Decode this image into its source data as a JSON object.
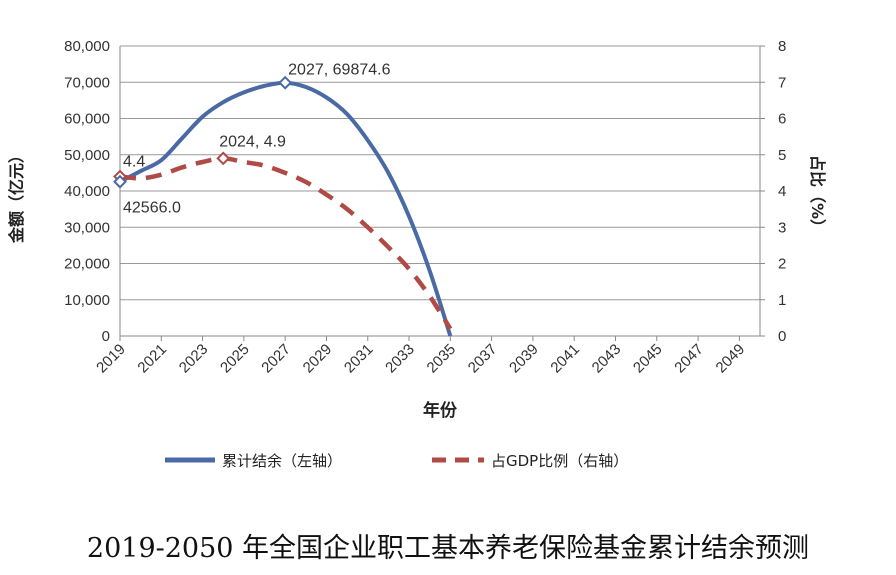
{
  "chart_data": {
    "type": "line",
    "title": "",
    "caption": "2019-2050 年全国企业职工基本养老保险基金累计结余预测",
    "xlabel": "年份",
    "ylabel_left": "金额（亿元）",
    "ylabel_right": "占比（%）",
    "x_ticks": [
      "2019",
      "2021",
      "2023",
      "2025",
      "2027",
      "2029",
      "2031",
      "2033",
      "2035",
      "2037",
      "2039",
      "2041",
      "2043",
      "2045",
      "2047",
      "2049"
    ],
    "x_range": [
      2019,
      2050
    ],
    "y_left_range": [
      0,
      80000
    ],
    "y_left_ticks": [
      "0",
      "10,000",
      "20,000",
      "30,000",
      "40,000",
      "50,000",
      "60,000",
      "70,000",
      "80,000"
    ],
    "y_right_range": [
      0,
      8
    ],
    "y_right_ticks": [
      "0",
      "1",
      "2",
      "3",
      "4",
      "5",
      "6",
      "7",
      "8"
    ],
    "series": [
      {
        "name": "累计结余（左轴）",
        "axis": "left",
        "style": "solid",
        "color": "#4a6aa5",
        "x": [
          2019,
          2020,
          2021,
          2022,
          2023,
          2024,
          2025,
          2026,
          2027,
          2028,
          2029,
          2030,
          2031,
          2032,
          2033,
          2034,
          2035
        ],
        "y": [
          42566.0,
          45500,
          48500,
          54500,
          60500,
          64500,
          67200,
          69000,
          69874.6,
          68700,
          65800,
          61200,
          54000,
          45000,
          33000,
          18000,
          0
        ]
      },
      {
        "name": "占GDP比例（右轴）",
        "axis": "right",
        "style": "dashed",
        "color": "#b04a45",
        "x": [
          2019,
          2020,
          2021,
          2022,
          2023,
          2024,
          2025,
          2026,
          2027,
          2028,
          2029,
          2030,
          2031,
          2032,
          2033,
          2034,
          2035
        ],
        "y": [
          4.4,
          4.35,
          4.45,
          4.65,
          4.8,
          4.9,
          4.8,
          4.7,
          4.5,
          4.25,
          3.9,
          3.5,
          3.0,
          2.45,
          1.85,
          1.1,
          0.2
        ]
      }
    ],
    "annotations": [
      {
        "text": "2027, 69874.6",
        "series": 0,
        "x": 2027,
        "y": 69874.6,
        "marker": true
      },
      {
        "text": "2024, 4.9",
        "series": 1,
        "x": 2024,
        "y": 4.9,
        "marker": true
      },
      {
        "text": "4.4",
        "series": 1,
        "x": 2019,
        "y": 4.4,
        "marker": true
      },
      {
        "text": "42566.0",
        "series": 0,
        "x": 2019,
        "y": 42566.0,
        "marker": true
      }
    ],
    "legend": {
      "placement": "bottom",
      "items": [
        "累计结余（左轴）",
        "占GDP比例（右轴）"
      ]
    }
  }
}
